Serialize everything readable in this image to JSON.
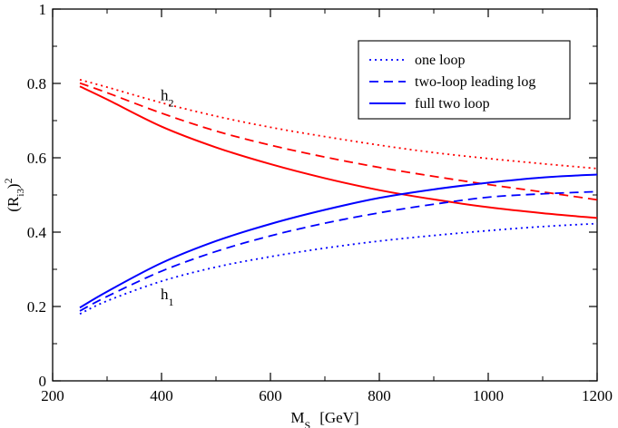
{
  "chart_data": {
    "type": "line",
    "title": "",
    "xlabel": {
      "main": "M",
      "sub": "S",
      "unit": "[GeV]"
    },
    "ylabel": {
      "open": "(R",
      "sub": "i3",
      "close": ")",
      "sup": "2"
    },
    "xlim": [
      200,
      1200
    ],
    "ylim": [
      0,
      1
    ],
    "xticks": [
      200,
      400,
      600,
      800,
      1000,
      1200
    ],
    "yticks": [
      0,
      0.2,
      0.4,
      0.6,
      0.8,
      1
    ],
    "ytick_labels": [
      "0",
      "0.2",
      "0.4",
      "0.6",
      "0.8",
      "1"
    ],
    "grid": false,
    "legend_position": "top-right",
    "legend": [
      {
        "label": "one loop",
        "dash": "dotted"
      },
      {
        "label": "two-loop leading log",
        "dash": "dashed"
      },
      {
        "label": "full two loop",
        "dash": "solid"
      }
    ],
    "annotations": [
      {
        "main": "h",
        "sub": "2",
        "x": 425,
        "y": 0.755
      },
      {
        "main": "h",
        "sub": "1",
        "x": 425,
        "y": 0.22
      }
    ],
    "x": [
      250,
      300,
      400,
      500,
      600,
      700,
      800,
      900,
      1000,
      1100,
      1200
    ],
    "series": [
      {
        "particle": "h2",
        "loop": "one loop",
        "color": "#ff0000",
        "dash": "dotted",
        "values": [
          0.81,
          0.79,
          0.748,
          0.712,
          0.682,
          0.657,
          0.634,
          0.614,
          0.598,
          0.584,
          0.571
        ]
      },
      {
        "particle": "h2",
        "loop": "two-loop leading log",
        "color": "#ff0000",
        "dash": "dashed",
        "values": [
          0.801,
          0.775,
          0.72,
          0.672,
          0.634,
          0.602,
          0.574,
          0.55,
          0.528,
          0.508,
          0.487
        ]
      },
      {
        "particle": "h2",
        "loop": "full two loop",
        "color": "#ff0000",
        "dash": "solid",
        "values": [
          0.792,
          0.757,
          0.684,
          0.628,
          0.583,
          0.545,
          0.513,
          0.488,
          0.467,
          0.451,
          0.438
        ]
      },
      {
        "particle": "h1",
        "loop": "one loop",
        "color": "#0000ff",
        "dash": "dotted",
        "values": [
          0.18,
          0.215,
          0.268,
          0.306,
          0.334,
          0.357,
          0.376,
          0.391,
          0.404,
          0.415,
          0.423
        ]
      },
      {
        "particle": "h1",
        "loop": "two-loop leading log",
        "color": "#0000ff",
        "dash": "dashed",
        "values": [
          0.188,
          0.227,
          0.295,
          0.348,
          0.39,
          0.424,
          0.452,
          0.475,
          0.494,
          0.503,
          0.509
        ]
      },
      {
        "particle": "h1",
        "loop": "full two loop",
        "color": "#0000ff",
        "dash": "solid",
        "values": [
          0.197,
          0.24,
          0.317,
          0.376,
          0.422,
          0.46,
          0.492,
          0.515,
          0.533,
          0.547,
          0.555
        ]
      }
    ]
  }
}
